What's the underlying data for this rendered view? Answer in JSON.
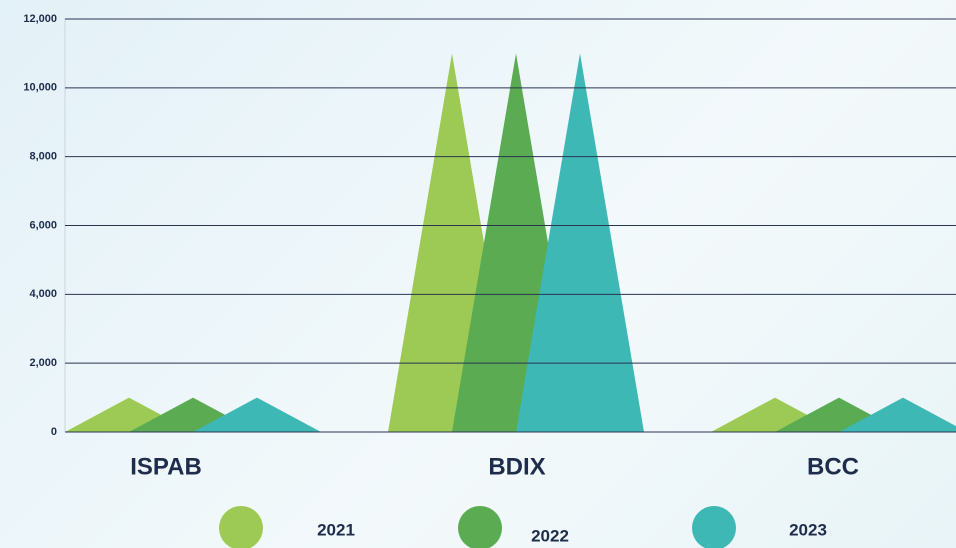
{
  "chart_data": {
    "type": "triangle-bar",
    "categories": [
      "ISPAB",
      "BDIX",
      "BCC"
    ],
    "series": [
      {
        "name": "2021",
        "color": "#9dca55",
        "values": [
          1000,
          11000,
          1000
        ]
      },
      {
        "name": "2022",
        "color": "#5aab52",
        "values": [
          1000,
          11000,
          1000
        ]
      },
      {
        "name": "2023",
        "color": "#3db8b5",
        "values": [
          1000,
          11000,
          1000
        ]
      }
    ],
    "ylim": [
      0,
      12000
    ],
    "yticks": [
      0,
      {
        "value": 2000,
        "label": "2,000"
      },
      {
        "value": 4000,
        "label": "4,000"
      },
      {
        "value": 6000,
        "label": "6,000"
      },
      {
        "value": 8000,
        "label": "8,000"
      },
      {
        "value": 10000,
        "label": "10,000"
      },
      {
        "value": 12000,
        "label": "12,000"
      }
    ],
    "grid": true,
    "legend": "bottom"
  }
}
